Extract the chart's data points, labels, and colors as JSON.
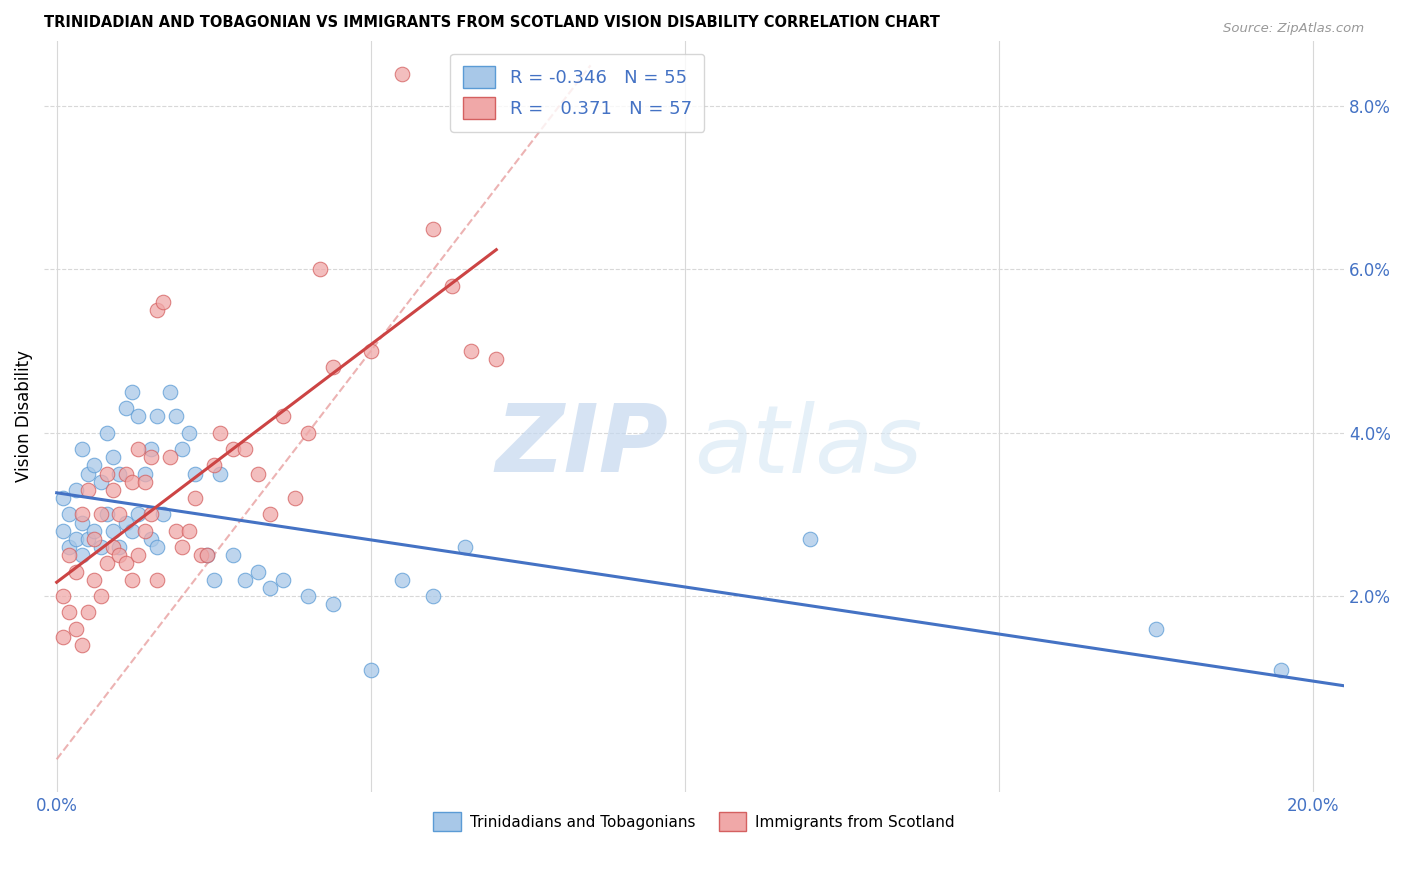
{
  "title": "TRINIDADIAN AND TOBAGONIAN VS IMMIGRANTS FROM SCOTLAND VISION DISABILITY CORRELATION CHART",
  "source": "Source: ZipAtlas.com",
  "xlabel_ticks": [
    "0.0%",
    "20.0%"
  ],
  "xlabel_vals": [
    0.0,
    0.2
  ],
  "ylabel": "Vision Disability",
  "ylabel_ticks": [
    "2.0%",
    "4.0%",
    "6.0%",
    "8.0%"
  ],
  "ylabel_vals": [
    0.02,
    0.04,
    0.06,
    0.08
  ],
  "xlim": [
    -0.002,
    0.205
  ],
  "ylim": [
    -0.004,
    0.088
  ],
  "blue_R": -0.346,
  "blue_N": 55,
  "pink_R": 0.371,
  "pink_N": 57,
  "blue_color": "#a8c8e8",
  "pink_color": "#f0a8a8",
  "blue_edge_color": "#5b9bd5",
  "pink_edge_color": "#d46060",
  "blue_line_color": "#4472c4",
  "pink_line_color": "#cc4444",
  "diagonal_color": "#e8a0a0",
  "legend_text_color": "#4472c4",
  "tick_color": "#4472c4",
  "blue_points_x": [
    0.001,
    0.001,
    0.002,
    0.002,
    0.003,
    0.003,
    0.004,
    0.004,
    0.004,
    0.005,
    0.005,
    0.006,
    0.006,
    0.007,
    0.007,
    0.008,
    0.008,
    0.009,
    0.009,
    0.01,
    0.01,
    0.011,
    0.011,
    0.012,
    0.012,
    0.013,
    0.013,
    0.014,
    0.015,
    0.015,
    0.016,
    0.016,
    0.017,
    0.018,
    0.019,
    0.02,
    0.021,
    0.022,
    0.024,
    0.025,
    0.026,
    0.028,
    0.03,
    0.032,
    0.034,
    0.036,
    0.04,
    0.044,
    0.05,
    0.055,
    0.06,
    0.065,
    0.12,
    0.175,
    0.195
  ],
  "blue_points_y": [
    0.028,
    0.032,
    0.026,
    0.03,
    0.027,
    0.033,
    0.025,
    0.029,
    0.038,
    0.027,
    0.035,
    0.028,
    0.036,
    0.026,
    0.034,
    0.03,
    0.04,
    0.028,
    0.037,
    0.026,
    0.035,
    0.029,
    0.043,
    0.028,
    0.045,
    0.03,
    0.042,
    0.035,
    0.038,
    0.027,
    0.042,
    0.026,
    0.03,
    0.045,
    0.042,
    0.038,
    0.04,
    0.035,
    0.025,
    0.022,
    0.035,
    0.025,
    0.022,
    0.023,
    0.021,
    0.022,
    0.02,
    0.019,
    0.011,
    0.022,
    0.02,
    0.026,
    0.027,
    0.016,
    0.011
  ],
  "pink_points_x": [
    0.001,
    0.001,
    0.002,
    0.002,
    0.003,
    0.003,
    0.004,
    0.004,
    0.005,
    0.005,
    0.006,
    0.006,
    0.007,
    0.007,
    0.008,
    0.008,
    0.009,
    0.009,
    0.01,
    0.01,
    0.011,
    0.011,
    0.012,
    0.012,
    0.013,
    0.013,
    0.014,
    0.014,
    0.015,
    0.015,
    0.016,
    0.016,
    0.017,
    0.018,
    0.019,
    0.02,
    0.021,
    0.022,
    0.023,
    0.024,
    0.025,
    0.026,
    0.028,
    0.03,
    0.032,
    0.034,
    0.036,
    0.038,
    0.04,
    0.042,
    0.044,
    0.05,
    0.055,
    0.06,
    0.063,
    0.066,
    0.07
  ],
  "pink_points_y": [
    0.02,
    0.015,
    0.018,
    0.025,
    0.016,
    0.023,
    0.014,
    0.03,
    0.018,
    0.033,
    0.022,
    0.027,
    0.02,
    0.03,
    0.024,
    0.035,
    0.026,
    0.033,
    0.025,
    0.03,
    0.024,
    0.035,
    0.022,
    0.034,
    0.025,
    0.038,
    0.034,
    0.028,
    0.03,
    0.037,
    0.022,
    0.055,
    0.056,
    0.037,
    0.028,
    0.026,
    0.028,
    0.032,
    0.025,
    0.025,
    0.036,
    0.04,
    0.038,
    0.038,
    0.035,
    0.03,
    0.042,
    0.032,
    0.04,
    0.06,
    0.048,
    0.05,
    0.084,
    0.065,
    0.058,
    0.05,
    0.049
  ]
}
